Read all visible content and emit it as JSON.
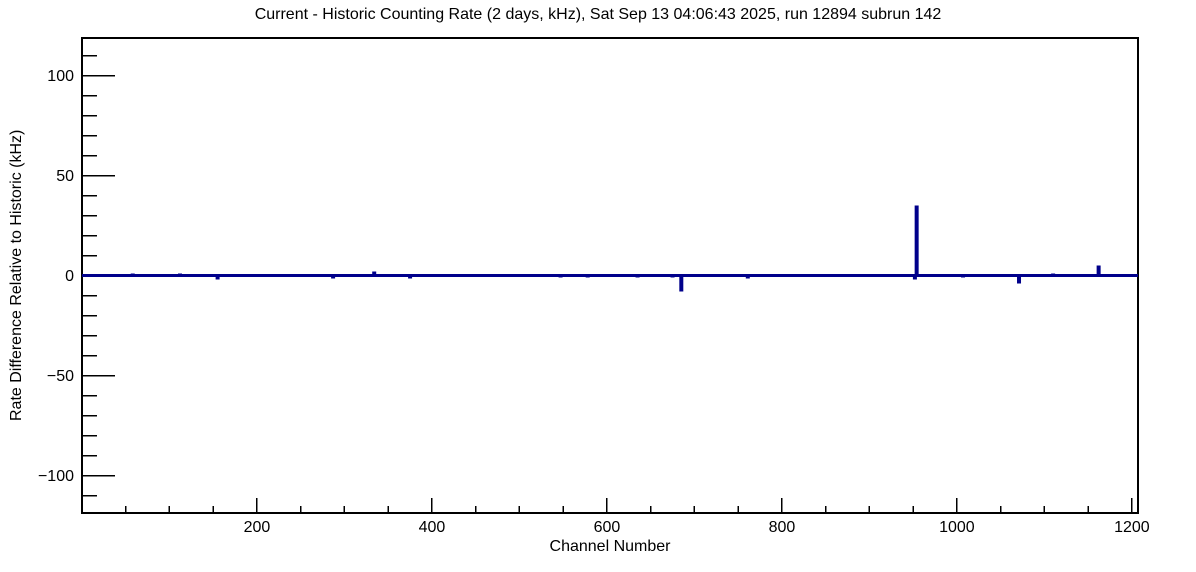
{
  "chart_data": {
    "type": "line",
    "title": "Current - Historic Counting Rate (2 days, kHz), Sat Sep 13 04:06:43 2025, run 12894 subrun 142",
    "xlabel": "Channel Number",
    "ylabel": "Rate Difference Relative to Historic (kHz)",
    "x_range": [
      0,
      1207
    ],
    "y_range": [
      -118.75,
      118.75
    ],
    "x_major_tick_step": 200,
    "x_minor_tick_step": 50,
    "y_major_tick_step": 50,
    "y_minor_tick_step": 10,
    "x_major_ticks": [
      {
        "value": 200,
        "label": "200"
      },
      {
        "value": 400,
        "label": "400"
      },
      {
        "value": 600,
        "label": "600"
      },
      {
        "value": 800,
        "label": "800"
      },
      {
        "value": 1000,
        "label": "1000"
      },
      {
        "value": 1200,
        "label": "1200"
      }
    ],
    "y_major_ticks": [
      {
        "value": 100,
        "label": "100"
      },
      {
        "value": 50,
        "label": "50"
      },
      {
        "value": 0,
        "label": "0"
      },
      {
        "value": -50,
        "label": "−50"
      },
      {
        "value": -100,
        "label": "−100"
      }
    ],
    "grid": false,
    "legend": "none",
    "line_color": "#00008b",
    "axis_color": "#000000",
    "background_color": "#ffffff",
    "series": [
      {
        "name": "rate-difference",
        "baseline_value": 0,
        "spikes": [
          {
            "channel": 58,
            "value": 1
          },
          {
            "channel": 112,
            "value": 1
          },
          {
            "channel": 155,
            "value": -2
          },
          {
            "channel": 287,
            "value": -1.5
          },
          {
            "channel": 334,
            "value": 2
          },
          {
            "channel": 375,
            "value": -1.5
          },
          {
            "channel": 547,
            "value": -1
          },
          {
            "channel": 578,
            "value": -1
          },
          {
            "channel": 635,
            "value": -1
          },
          {
            "channel": 675,
            "value": -1
          },
          {
            "channel": 685,
            "value": -8
          },
          {
            "channel": 761,
            "value": -1.5
          },
          {
            "channel": 952,
            "value": -2
          },
          {
            "channel": 954,
            "value": 35
          },
          {
            "channel": 1007,
            "value": -1
          },
          {
            "channel": 1071,
            "value": -4
          },
          {
            "channel": 1110,
            "value": 1
          },
          {
            "channel": 1162,
            "value": 5
          }
        ]
      }
    ]
  }
}
